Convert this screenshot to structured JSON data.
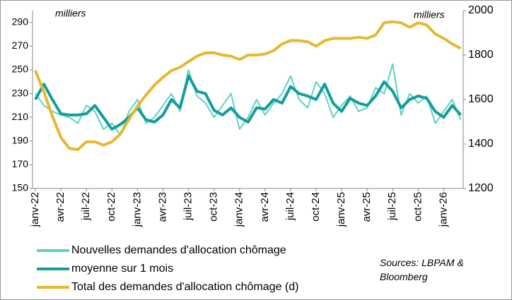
{
  "chart_data": {
    "type": "line",
    "annotations": [
      "milliers",
      "milliers"
    ],
    "source": "Sources: LBPAM & Bloomberg",
    "categories": [
      "janv-22",
      null,
      null,
      "avr-22",
      null,
      null,
      "juil-22",
      null,
      null,
      "oct-22",
      null,
      null,
      "janv-23",
      null,
      null,
      "avr-23",
      null,
      null,
      "juil-23",
      null,
      null,
      "oct-23",
      null,
      null,
      "janv-24",
      null,
      null,
      "avr-24",
      null,
      null,
      "juil-24",
      null,
      null,
      "oct-24",
      null,
      null,
      "janv-25",
      null,
      null,
      "avr-25",
      null,
      null,
      "juil-25",
      null,
      null,
      "oct-25",
      null,
      null,
      "janv-26",
      null,
      null
    ],
    "ylim": [
      150,
      300
    ],
    "yticks": [
      150,
      170,
      190,
      210,
      230,
      250,
      270,
      290
    ],
    "y2lim": [
      1200,
      2000
    ],
    "y2ticks": [
      1200,
      1400,
      1600,
      1800,
      2000
    ],
    "grid": false,
    "series": [
      {
        "name": "Nouvelles demandes d'allocation chômage",
        "color": "#5fd3bf",
        "values": [
          230,
          220,
          215,
          212,
          210,
          205,
          220,
          215,
          200,
          205,
          195,
          215,
          225,
          205,
          210,
          220,
          230,
          215,
          250,
          228,
          222,
          210,
          220,
          230,
          200,
          210,
          225,
          212,
          222,
          230,
          245,
          225,
          218,
          240,
          230,
          210,
          220,
          228,
          215,
          218,
          235,
          230,
          255,
          212,
          230,
          222,
          228,
          205,
          215,
          225,
          208
        ]
      },
      {
        "name": "moyenne sur 1 mois",
        "color": "#139e9b",
        "values": [
          225,
          238,
          225,
          213,
          212,
          212,
          213,
          220,
          210,
          200,
          204,
          210,
          218,
          208,
          206,
          212,
          225,
          218,
          245,
          232,
          230,
          216,
          212,
          218,
          210,
          206,
          218,
          217,
          225,
          222,
          236,
          230,
          228,
          225,
          238,
          222,
          215,
          226,
          222,
          220,
          228,
          240,
          232,
          218,
          225,
          228,
          226,
          215,
          210,
          220,
          212
        ]
      },
      {
        "name": "Total des demandes d'allocation chômage (d)",
        "color": "#e8b730",
        "axis": "y2",
        "values": [
          1730,
          1635,
          1525,
          1430,
          1380,
          1375,
          1410,
          1410,
          1395,
          1410,
          1445,
          1510,
          1570,
          1620,
          1665,
          1700,
          1730,
          1745,
          1770,
          1795,
          1810,
          1810,
          1800,
          1795,
          1780,
          1800,
          1800,
          1805,
          1820,
          1850,
          1865,
          1865,
          1860,
          1840,
          1865,
          1875,
          1875,
          1875,
          1880,
          1875,
          1890,
          1945,
          1950,
          1945,
          1925,
          1945,
          1935,
          1895,
          1875,
          1850,
          1830
        ]
      }
    ]
  }
}
